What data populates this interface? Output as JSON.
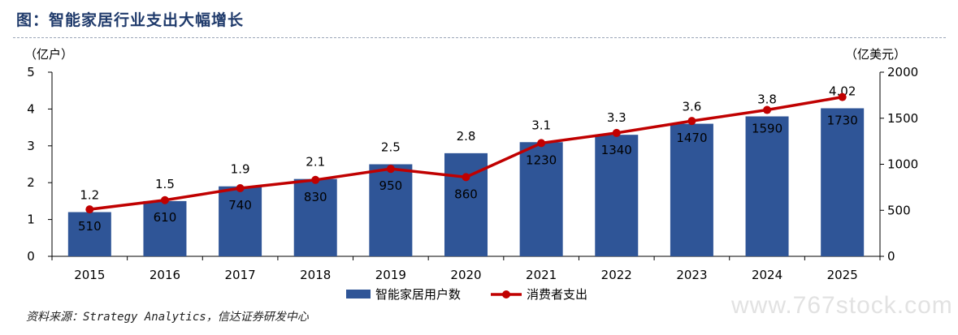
{
  "title": "图：智能家居行业支出大幅增长",
  "source": "资料来源：Strategy Analytics，信达证券研发中心",
  "watermark": "www.767stock.com",
  "chart_data": {
    "type": "bar+line",
    "categories": [
      "2015",
      "2016",
      "2017",
      "2018",
      "2019",
      "2020",
      "2021",
      "2022",
      "2023",
      "2024",
      "2025"
    ],
    "left_axis": {
      "label": "（亿户）",
      "range": [
        0,
        5
      ],
      "ticks": [
        0,
        1,
        2,
        3,
        4,
        5
      ]
    },
    "right_axis": {
      "label": "（亿美元）",
      "range": [
        0,
        2000
      ],
      "ticks": [
        0,
        500,
        1000,
        1500,
        2000
      ]
    },
    "series": [
      {
        "name": "智能家居用户数",
        "kind": "bar",
        "axis": "left",
        "color": "#2f5597",
        "values": [
          1.2,
          1.5,
          1.9,
          2.1,
          2.5,
          2.8,
          3.1,
          3.3,
          3.6,
          3.8,
          4.02
        ],
        "labels": [
          "1.2",
          "1.5",
          "1.9",
          "2.1",
          "2.5",
          "2.8",
          "3.1",
          "3.3",
          "3.6",
          "3.8",
          "4.02"
        ]
      },
      {
        "name": "消费者支出",
        "kind": "line",
        "axis": "right",
        "color": "#c00000",
        "values": [
          510,
          610,
          740,
          830,
          950,
          860,
          1230,
          1340,
          1470,
          1590,
          1730
        ],
        "labels": [
          "510",
          "610",
          "740",
          "830",
          "950",
          "860",
          "1230",
          "1340",
          "1470",
          "1590",
          "1730"
        ]
      }
    ],
    "legend": "bottom-center"
  }
}
